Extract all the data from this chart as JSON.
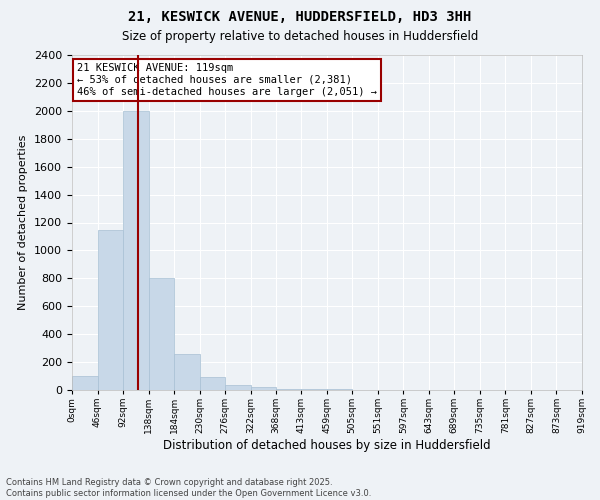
{
  "title": "21, KESWICK AVENUE, HUDDERSFIELD, HD3 3HH",
  "subtitle": "Size of property relative to detached houses in Huddersfield",
  "xlabel": "Distribution of detached houses by size in Huddersfield",
  "ylabel": "Number of detached properties",
  "property_size": 119,
  "property_label": "21 KESWICK AVENUE: 119sqm",
  "pct_smaller": 53,
  "n_smaller": 2381,
  "pct_larger_semi": 46,
  "n_larger_semi": 2051,
  "bar_color": "#c8d8e8",
  "bar_edge_color": "#a8c0d4",
  "vline_color": "#990000",
  "annotation_bg": "#ffffff",
  "bin_edges": [
    0,
    46,
    92,
    138,
    184,
    230,
    276,
    322,
    368,
    413,
    459,
    505,
    551,
    597,
    643,
    689,
    735,
    781,
    827,
    873,
    919
  ],
  "bin_labels": [
    "0sqm",
    "46sqm",
    "92sqm",
    "138sqm",
    "184sqm",
    "230sqm",
    "276sqm",
    "322sqm",
    "368sqm",
    "413sqm",
    "459sqm",
    "505sqm",
    "551sqm",
    "597sqm",
    "643sqm",
    "689sqm",
    "735sqm",
    "781sqm",
    "827sqm",
    "873sqm",
    "919sqm"
  ],
  "counts": [
    100,
    1145,
    2000,
    800,
    260,
    90,
    35,
    20,
    10,
    5,
    4,
    2,
    1,
    0,
    0,
    0,
    0,
    0,
    0,
    0
  ],
  "ylim": [
    0,
    2400
  ],
  "yticks": [
    0,
    200,
    400,
    600,
    800,
    1000,
    1200,
    1400,
    1600,
    1800,
    2000,
    2200,
    2400
  ],
  "bg_color": "#eef2f6",
  "grid_color": "#ffffff",
  "footer1": "Contains HM Land Registry data © Crown copyright and database right 2025.",
  "footer2": "Contains public sector information licensed under the Open Government Licence v3.0."
}
